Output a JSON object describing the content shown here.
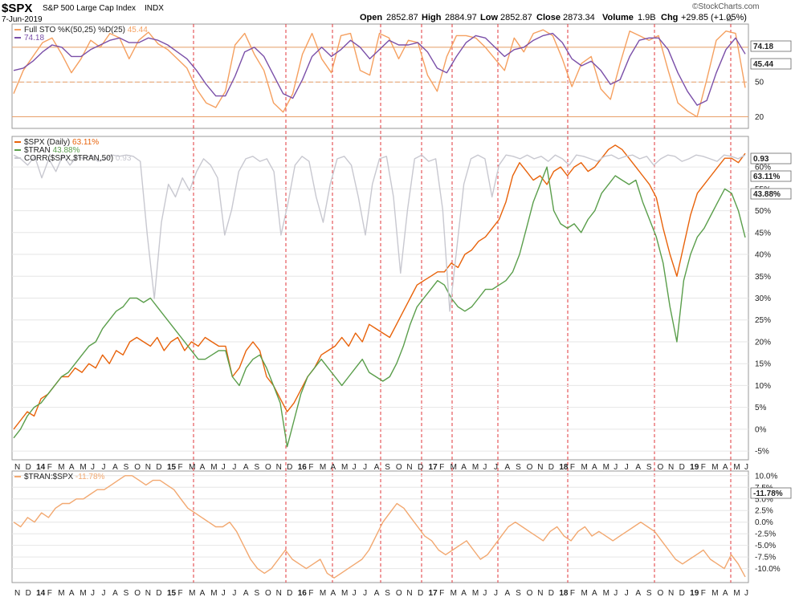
{
  "header": {
    "symbol": "$SPX",
    "name": "S&P 500 Large Cap Index",
    "exchange": "INDX",
    "date": "7-Jun-2019",
    "open_label": "Open",
    "open": "2852.87",
    "high_label": "High",
    "high": "2884.97",
    "low_label": "Low",
    "low": "2852.87",
    "close_label": "Close",
    "close": "2873.34",
    "volume_label": "Volume",
    "volume": "1.9B",
    "chg_label": "Chg",
    "chg": "+29.85 (+1.05%)",
    "brand": "©StockCharts.com"
  },
  "colors": {
    "spx": "#e8620a",
    "tran": "#5a9e4b",
    "corr": "#c8c8d0",
    "sto_k": "#f5a060",
    "sto_d": "#7a4fa8",
    "ratio": "#f2a870",
    "hline": "#e8a06a",
    "vline": "#e0363a",
    "grid": "#e6e6e6"
  },
  "x_axis": {
    "labels": [
      "N",
      "D",
      "14",
      "F",
      "M",
      "A",
      "M",
      "J",
      "J",
      "A",
      "S",
      "O",
      "N",
      "D",
      "15",
      "F",
      "M",
      "A",
      "M",
      "J",
      "J",
      "A",
      "S",
      "O",
      "N",
      "D",
      "16",
      "F",
      "M",
      "A",
      "M",
      "J",
      "J",
      "A",
      "S",
      "O",
      "N",
      "D",
      "17",
      "F",
      "M",
      "A",
      "M",
      "J",
      "J",
      "A",
      "S",
      "O",
      "N",
      "D",
      "18",
      "F",
      "M",
      "A",
      "M",
      "J",
      "J",
      "A",
      "S",
      "O",
      "N",
      "D",
      "19",
      "F",
      "M",
      "A",
      "M",
      "J"
    ],
    "bold": [
      "14",
      "15",
      "16",
      "17",
      "18",
      "19"
    ]
  },
  "chart_data": [
    {
      "type": "line",
      "title": "Full STO %K(50,25) %D(25)",
      "legend": [
        {
          "name": "Full STO %K(50,25) %D(25)",
          "value": "45.44",
          "color_key": "sto_k"
        },
        {
          "name": "",
          "value": "74.18",
          "color_key": "sto_d"
        }
      ],
      "y_ticks": [
        "80",
        "50",
        "20"
      ],
      "ylim": [
        10,
        100
      ],
      "reference_lines": [
        80,
        50,
        20
      ],
      "end_labels": [
        "74.18",
        "45.44"
      ],
      "series": [
        {
          "name": "%K",
          "color_key": "sto_k",
          "values": [
            40,
            60,
            72,
            84,
            88,
            74,
            58,
            70,
            86,
            80,
            92,
            88,
            70,
            86,
            93,
            83,
            78,
            70,
            62,
            44,
            32,
            28,
            42,
            82,
            92,
            74,
            60,
            32,
            24,
            40,
            74,
            92,
            70,
            58,
            90,
            92,
            60,
            56,
            92,
            88,
            70,
            86,
            84,
            56,
            42,
            72,
            90,
            90,
            88,
            80,
            70,
            60,
            88,
            76,
            92,
            95,
            90,
            70,
            46,
            66,
            72,
            44,
            35,
            66,
            94,
            90,
            86,
            90,
            60,
            32,
            25,
            20,
            52,
            86,
            94,
            92,
            45
          ]
        },
        {
          "name": "%D",
          "color_key": "sto_d",
          "values": [
            60,
            62,
            68,
            76,
            82,
            80,
            72,
            72,
            78,
            82,
            86,
            88,
            84,
            84,
            88,
            86,
            82,
            76,
            70,
            60,
            48,
            38,
            38,
            55,
            76,
            80,
            72,
            56,
            40,
            36,
            52,
            72,
            80,
            72,
            78,
            86,
            80,
            70,
            78,
            86,
            82,
            82,
            84,
            76,
            62,
            58,
            72,
            84,
            90,
            88,
            80,
            72,
            78,
            80,
            86,
            90,
            92,
            84,
            70,
            64,
            68,
            60,
            48,
            52,
            72,
            86,
            88,
            88,
            78,
            58,
            42,
            30,
            34,
            58,
            78,
            88,
            74.18
          ]
        }
      ]
    },
    {
      "type": "line",
      "title": "$SPX (Daily)",
      "legend": [
        {
          "name": "$SPX (Daily)",
          "value": "63.11%",
          "color_key": "spx"
        },
        {
          "name": "$TRAN",
          "value": "43.88%",
          "color_key": "tran"
        },
        {
          "name": "CORR($SPX,$TRAN,50)",
          "value": "0.93",
          "color_key": "corr"
        }
      ],
      "y_ticks": [
        "60%",
        "55%",
        "50%",
        "45%",
        "40%",
        "35%",
        "30%",
        "25%",
        "20%",
        "15%",
        "10%",
        "5%",
        "0%",
        "-5%"
      ],
      "ylim": [
        -7,
        67
      ],
      "end_labels": [
        "0.93",
        "63.11%",
        "43.88%"
      ],
      "series": [
        {
          "name": "$SPX (Daily)",
          "color_key": "spx",
          "values": [
            0,
            2,
            4,
            3,
            7,
            8,
            10,
            12,
            12,
            14,
            13,
            15,
            14,
            17,
            15,
            18,
            17,
            20,
            21,
            20,
            19,
            21,
            18,
            20,
            21,
            18,
            20,
            19,
            21,
            20,
            19,
            19,
            12,
            14,
            18,
            20,
            18,
            12,
            10,
            7,
            4,
            6,
            9,
            12,
            14,
            17,
            18,
            19,
            21,
            19,
            22,
            20,
            24,
            23,
            22,
            21,
            24,
            27,
            30,
            33,
            34,
            35,
            36,
            36,
            38,
            37,
            40,
            41,
            43,
            44,
            46,
            48,
            52,
            58,
            61,
            59,
            57,
            58,
            56,
            59,
            60,
            58,
            60,
            61,
            59,
            60,
            62,
            64,
            65,
            64,
            62,
            60,
            58,
            56,
            53,
            46,
            40,
            35,
            42,
            49,
            54,
            56,
            58,
            60,
            62,
            62,
            61,
            63.11
          ]
        },
        {
          "name": "$TRAN",
          "color_key": "tran",
          "values": [
            -2,
            0,
            3,
            5,
            6,
            8,
            10,
            12,
            13,
            15,
            17,
            19,
            20,
            23,
            25,
            27,
            28,
            30,
            30,
            29,
            30,
            28,
            26,
            24,
            22,
            20,
            18,
            16,
            16,
            17,
            18,
            18,
            12,
            10,
            14,
            16,
            17,
            14,
            10,
            6,
            -4,
            2,
            8,
            12,
            14,
            16,
            14,
            12,
            10,
            12,
            14,
            16,
            13,
            12,
            11,
            12,
            15,
            19,
            24,
            28,
            30,
            32,
            34,
            33,
            30,
            28,
            27,
            28,
            30,
            32,
            32,
            33,
            34,
            36,
            40,
            46,
            52,
            56,
            60,
            50,
            47,
            46,
            47,
            45,
            48,
            50,
            54,
            56,
            58,
            57,
            56,
            57,
            52,
            48,
            44,
            38,
            28,
            20,
            34,
            40,
            44,
            46,
            49,
            52,
            55,
            54,
            50,
            43.88
          ]
        },
        {
          "name": "CORR($SPX,$TRAN,50)",
          "color_key": "corr",
          "values": [
            0.93,
            0.9,
            0.85,
            0.92,
            0.75,
            0.9,
            0.8,
            0.93,
            0.85,
            0.92,
            0.9,
            0.93,
            0.88,
            0.9,
            0.93,
            0.92,
            0.93,
            0.92,
            0.88,
            0.3,
            -0.2,
            0.4,
            0.7,
            0.6,
            0.75,
            0.65,
            0.8,
            0.9,
            0.85,
            0.75,
            0.3,
            0.5,
            0.8,
            0.9,
            0.92,
            0.88,
            0.9,
            0.8,
            0.3,
            0.55,
            0.85,
            0.92,
            0.88,
            0.6,
            0.4,
            0.7,
            0.9,
            0.92,
            0.85,
            0.6,
            0.3,
            0.7,
            0.9,
            0.92,
            0.6,
            0.0,
            0.5,
            0.9,
            0.93,
            0.88,
            0.9,
            0.5,
            -0.3,
            0.2,
            0.7,
            0.9,
            0.93,
            0.9,
            0.6,
            0.85,
            0.93,
            0.92,
            0.9,
            0.93,
            0.9,
            0.92,
            0.88,
            0.93,
            0.9,
            0.85,
            0.93,
            0.92,
            0.9,
            0.88,
            0.92,
            0.93,
            0.9,
            0.92,
            0.93,
            0.9,
            0.92,
            0.85,
            0.9,
            0.93,
            0.92,
            0.88,
            0.9,
            0.93,
            0.92,
            0.9,
            0.88,
            0.93,
            0.92,
            0.9,
            0.93
          ]
        }
      ]
    },
    {
      "type": "line",
      "title": "$TRAN:$SPX",
      "legend": [
        {
          "name": "$TRAN:$SPX",
          "value": "-11.78%",
          "color_key": "ratio"
        }
      ],
      "y_ticks": [
        "10.0%",
        "7.5%",
        "5.0%",
        "2.5%",
        "0.0%",
        "-2.5%",
        "-5.0%",
        "-7.5%",
        "-10.0%"
      ],
      "ylim": [
        -13,
        11
      ],
      "end_labels": [
        "-11.78%"
      ],
      "series": [
        {
          "name": "$TRAN:$SPX",
          "color_key": "ratio",
          "values": [
            0,
            -1,
            1,
            0,
            2,
            1,
            3,
            4,
            4,
            5,
            5,
            6,
            7,
            7,
            8,
            9,
            10,
            10,
            9,
            8,
            9,
            9,
            8,
            7,
            5,
            3,
            2,
            1,
            0,
            -1,
            -1,
            0,
            -2,
            -5,
            -8,
            -10,
            -11,
            -10,
            -8,
            -6,
            -8,
            -9,
            -10,
            -9,
            -8,
            -11,
            -12,
            -11,
            -10,
            -9,
            -8,
            -6,
            -3,
            0,
            2,
            4,
            3,
            1,
            -1,
            -3,
            -4,
            -6,
            -7,
            -6,
            -5,
            -4,
            -6,
            -8,
            -7,
            -5,
            -3,
            -1,
            0,
            -1,
            -2,
            -3,
            -4,
            -2,
            -1,
            -3,
            -4,
            -2,
            -1,
            -3,
            -2,
            -3,
            -4,
            -3,
            -2,
            -1,
            0,
            -1,
            -2,
            -4,
            -6,
            -8,
            -9,
            -8,
            -7,
            -6,
            -8,
            -9,
            -10,
            -7,
            -9,
            -11.78
          ]
        }
      ]
    }
  ]
}
